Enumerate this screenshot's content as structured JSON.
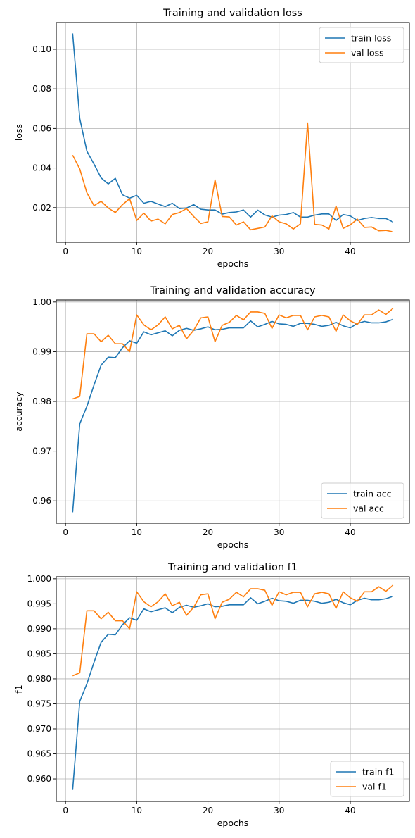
{
  "chart_data": [
    {
      "type": "line",
      "title": "Training and validation loss",
      "xlabel": "epochs",
      "ylabel": "loss",
      "xlim": [
        -1.3,
        48.3
      ],
      "ylim": [
        0.0025,
        0.1135
      ],
      "xticks": [
        0,
        10,
        20,
        30,
        40
      ],
      "yticks": [
        0.02,
        0.04,
        0.06,
        0.08,
        0.1
      ],
      "ytick_labels": [
        "0.02",
        "0.04",
        "0.06",
        "0.08",
        "0.10"
      ],
      "grid": true,
      "legend_position": "upper right",
      "x": [
        1,
        2,
        3,
        4,
        5,
        6,
        7,
        8,
        9,
        10,
        11,
        12,
        13,
        14,
        15,
        16,
        17,
        18,
        19,
        20,
        21,
        22,
        23,
        24,
        25,
        26,
        27,
        28,
        29,
        30,
        31,
        32,
        33,
        34,
        35,
        36,
        37,
        38,
        39,
        40,
        41,
        42,
        43,
        44,
        45,
        46
      ],
      "series": [
        {
          "name": "train loss",
          "color": "#1f77b4",
          "values": [
            0.108,
            0.065,
            0.0485,
            0.042,
            0.035,
            0.032,
            0.0348,
            0.0265,
            0.0248,
            0.0262,
            0.0222,
            0.0232,
            0.0218,
            0.0205,
            0.0222,
            0.0195,
            0.0198,
            0.0215,
            0.0192,
            0.0188,
            0.0188,
            0.0167,
            0.0175,
            0.0178,
            0.0188,
            0.0152,
            0.0187,
            0.0163,
            0.0152,
            0.0162,
            0.0165,
            0.0175,
            0.0152,
            0.0152,
            0.0162,
            0.0168,
            0.0168,
            0.0135,
            0.0165,
            0.0158,
            0.0135,
            0.0145,
            0.015,
            0.0145,
            0.0145,
            0.0127
          ]
        },
        {
          "name": "val loss",
          "color": "#ff7f0e",
          "values": [
            0.0465,
            0.0395,
            0.0275,
            0.021,
            0.0232,
            0.0198,
            0.0175,
            0.0215,
            0.0245,
            0.0135,
            0.0172,
            0.0132,
            0.0142,
            0.0118,
            0.0165,
            0.0175,
            0.0195,
            0.0155,
            0.012,
            0.0128,
            0.034,
            0.0155,
            0.0153,
            0.0112,
            0.0128,
            0.0088,
            0.0095,
            0.0102,
            0.0158,
            0.0128,
            0.0118,
            0.0092,
            0.0118,
            0.0628,
            0.0115,
            0.0112,
            0.0092,
            0.0208,
            0.0095,
            0.0113,
            0.0142,
            0.01,
            0.0102,
            0.0083,
            0.0085,
            0.0078
          ]
        }
      ]
    },
    {
      "type": "line",
      "title": "Training and validation accuracy",
      "xlabel": "epochs",
      "ylabel": "accuracy",
      "xlim": [
        -1.3,
        48.3
      ],
      "ylim": [
        0.9555,
        1.0004
      ],
      "xticks": [
        0,
        10,
        20,
        30,
        40
      ],
      "yticks": [
        0.96,
        0.97,
        0.98,
        0.99,
        1.0
      ],
      "ytick_labels": [
        "0.96",
        "0.97",
        "0.98",
        "0.99",
        "1.00"
      ],
      "grid": true,
      "legend_position": "lower right",
      "x": [
        1,
        2,
        3,
        4,
        5,
        6,
        7,
        8,
        9,
        10,
        11,
        12,
        13,
        14,
        15,
        16,
        17,
        18,
        19,
        20,
        21,
        22,
        23,
        24,
        25,
        26,
        27,
        28,
        29,
        30,
        31,
        32,
        33,
        34,
        35,
        36,
        37,
        38,
        39,
        40,
        41,
        42,
        43,
        44,
        45,
        46
      ],
      "series": [
        {
          "name": "train acc",
          "color": "#1f77b4",
          "values": [
            0.9577,
            0.9755,
            0.979,
            0.9833,
            0.9873,
            0.9889,
            0.9888,
            0.9908,
            0.9922,
            0.9917,
            0.994,
            0.9934,
            0.9938,
            0.9942,
            0.9932,
            0.9943,
            0.9947,
            0.9943,
            0.9946,
            0.995,
            0.9944,
            0.9945,
            0.9948,
            0.9948,
            0.9948,
            0.9962,
            0.995,
            0.9955,
            0.9961,
            0.9956,
            0.9955,
            0.9951,
            0.9957,
            0.9957,
            0.9955,
            0.9951,
            0.9953,
            0.9959,
            0.9952,
            0.9948,
            0.9957,
            0.9961,
            0.9958,
            0.9958,
            0.996,
            0.9965
          ]
        },
        {
          "name": "val acc",
          "color": "#ff7f0e",
          "values": [
            0.9805,
            0.981,
            0.9936,
            0.9936,
            0.992,
            0.9933,
            0.9916,
            0.9916,
            0.99,
            0.9974,
            0.9954,
            0.9944,
            0.9954,
            0.997,
            0.9946,
            0.9953,
            0.9926,
            0.9943,
            0.9968,
            0.997,
            0.992,
            0.9953,
            0.9959,
            0.9973,
            0.9964,
            0.998,
            0.998,
            0.9977,
            0.9947,
            0.9974,
            0.9968,
            0.9973,
            0.9973,
            0.9944,
            0.997,
            0.9973,
            0.997,
            0.9941,
            0.9974,
            0.9962,
            0.9955,
            0.9974,
            0.9974,
            0.9984,
            0.9975,
            0.9987
          ]
        }
      ]
    },
    {
      "type": "line",
      "title": "Training and validation f1",
      "xlabel": "epochs",
      "ylabel": "f1",
      "xlim": [
        -1.3,
        48.3
      ],
      "ylim": [
        0.9555,
        1.0004
      ],
      "xticks": [
        0,
        10,
        20,
        30,
        40
      ],
      "yticks": [
        0.96,
        0.965,
        0.97,
        0.975,
        0.98,
        0.985,
        0.99,
        0.995,
        1.0
      ],
      "ytick_labels": [
        "0.960",
        "0.965",
        "0.970",
        "0.975",
        "0.980",
        "0.985",
        "0.990",
        "0.995",
        "1.000"
      ],
      "grid": true,
      "legend_position": "lower right",
      "x": [
        1,
        2,
        3,
        4,
        5,
        6,
        7,
        8,
        9,
        10,
        11,
        12,
        13,
        14,
        15,
        16,
        17,
        18,
        19,
        20,
        21,
        22,
        23,
        24,
        25,
        26,
        27,
        28,
        29,
        30,
        31,
        32,
        33,
        34,
        35,
        36,
        37,
        38,
        39,
        40,
        41,
        42,
        43,
        44,
        45,
        46
      ],
      "series": [
        {
          "name": "train f1",
          "color": "#1f77b4",
          "values": [
            0.9578,
            0.9755,
            0.979,
            0.9833,
            0.9873,
            0.9889,
            0.9888,
            0.9908,
            0.9922,
            0.9917,
            0.994,
            0.9934,
            0.9938,
            0.9942,
            0.9932,
            0.9943,
            0.9947,
            0.9943,
            0.9946,
            0.995,
            0.9944,
            0.9945,
            0.9948,
            0.9948,
            0.9948,
            0.9962,
            0.995,
            0.9955,
            0.9961,
            0.9956,
            0.9955,
            0.9951,
            0.9957,
            0.9957,
            0.9955,
            0.9951,
            0.9953,
            0.9959,
            0.9952,
            0.9948,
            0.9957,
            0.9961,
            0.9958,
            0.9958,
            0.996,
            0.9965
          ]
        },
        {
          "name": "val f1",
          "color": "#ff7f0e",
          "values": [
            0.9806,
            0.9812,
            0.9936,
            0.9936,
            0.992,
            0.9933,
            0.9916,
            0.9916,
            0.99,
            0.9974,
            0.9954,
            0.9944,
            0.9954,
            0.997,
            0.9946,
            0.9953,
            0.9927,
            0.9943,
            0.9968,
            0.997,
            0.992,
            0.9953,
            0.9959,
            0.9973,
            0.9964,
            0.998,
            0.998,
            0.9977,
            0.9947,
            0.9974,
            0.9968,
            0.9973,
            0.9973,
            0.9944,
            0.997,
            0.9973,
            0.997,
            0.9941,
            0.9974,
            0.9962,
            0.9955,
            0.9974,
            0.9974,
            0.9984,
            0.9975,
            0.9987
          ]
        }
      ]
    }
  ]
}
